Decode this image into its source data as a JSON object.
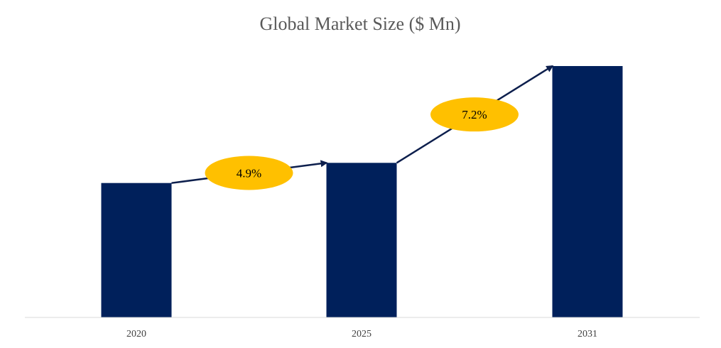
{
  "chart_data": {
    "type": "bar",
    "title": "Global Market Size ($ Mn)",
    "categories": [
      "2020",
      "2025",
      "2031"
    ],
    "values": [
      100,
      115,
      187
    ],
    "ylim": [
      0,
      187
    ],
    "grid": false,
    "colors": {
      "bar": "#00205b",
      "arrow": "#0d1f4d",
      "badge": "#ffc000",
      "axis": "#d9d9d9"
    },
    "annotations": [
      {
        "from": "2020",
        "to": "2025",
        "label": "4.9%"
      },
      {
        "from": "2025",
        "to": "2031",
        "label": "7.2%"
      }
    ]
  }
}
